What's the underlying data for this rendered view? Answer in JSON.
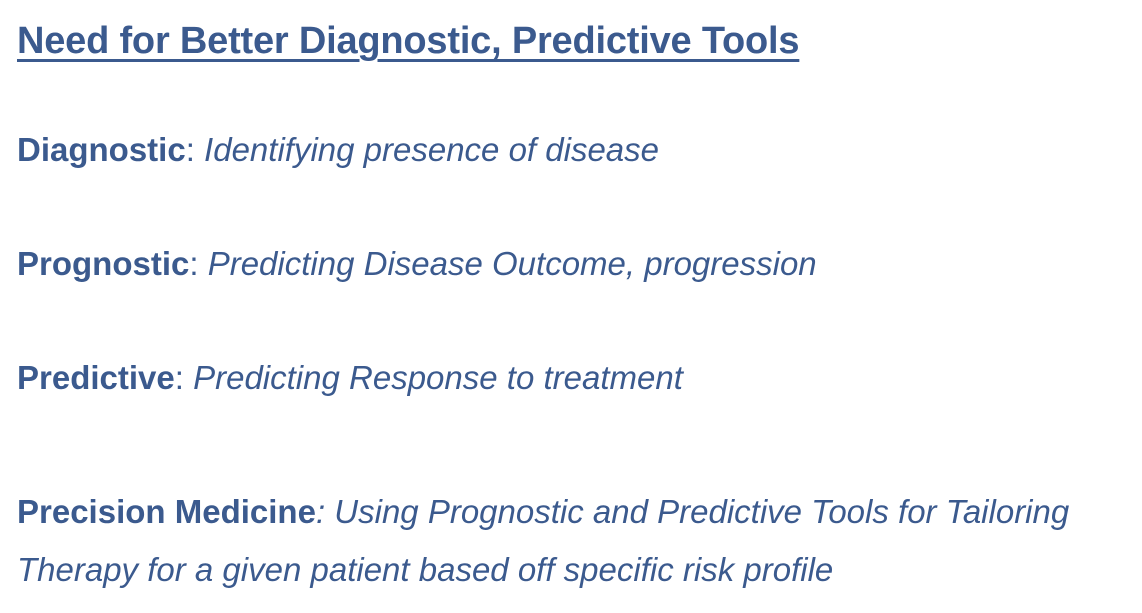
{
  "slide": {
    "title": "Need for Better Diagnostic, Predictive Tools",
    "items": [
      {
        "term": "Diagnostic",
        "separator": ": ",
        "description": "Identifying presence of disease"
      },
      {
        "term": "Prognostic",
        "separator": ": ",
        "description": "Predicting Disease Outcome, progression"
      },
      {
        "term": "Predictive",
        "separator": ": ",
        "description": "Predicting Response to treatment"
      },
      {
        "term": "Precision Medicine",
        "separator": ": ",
        "description": "Using Prognostic and Predictive Tools for Tailoring Therapy for a given patient based off specific risk profile"
      }
    ]
  },
  "colors": {
    "text": "#3b5a8e",
    "background": "#ffffff"
  }
}
